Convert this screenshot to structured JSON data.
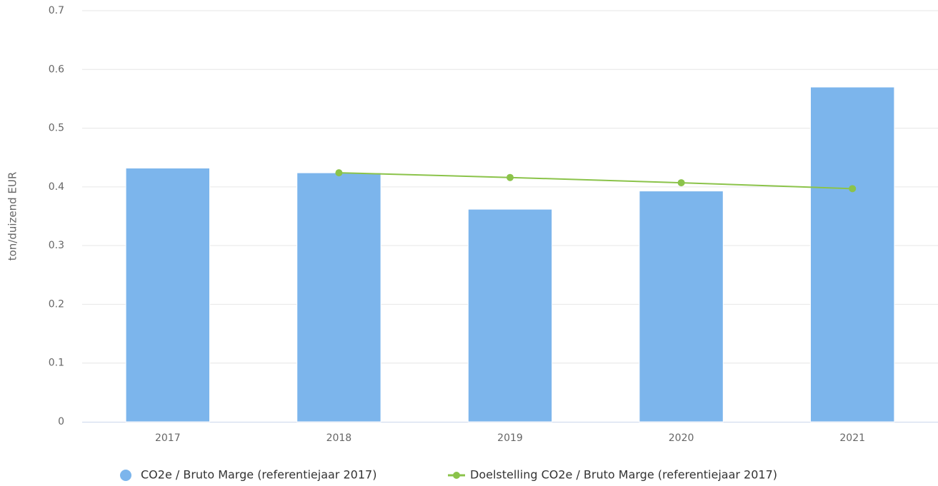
{
  "chart_data": {
    "type": "bar",
    "y_axis_label": "ton/duizend EUR",
    "categories": [
      "2017",
      "2018",
      "2019",
      "2020",
      "2021"
    ],
    "series": [
      {
        "name": "CO2e / Bruto Marge (referentiejaar 2017)",
        "type": "bar",
        "color": "#7cb5ec",
        "values": [
          0.432,
          0.424,
          0.362,
          0.393,
          0.57
        ]
      },
      {
        "name": "Doelstelling CO2e / Bruto Marge (referentiejaar 2017)",
        "type": "line",
        "color": "#8bc34a",
        "values": [
          null,
          0.424,
          0.416,
          0.407,
          0.397
        ]
      }
    ],
    "ylim": [
      0,
      0.7
    ],
    "yticks": [
      0,
      0.1,
      0.2,
      0.3,
      0.4,
      0.5,
      0.6,
      0.7
    ],
    "grid": true
  }
}
